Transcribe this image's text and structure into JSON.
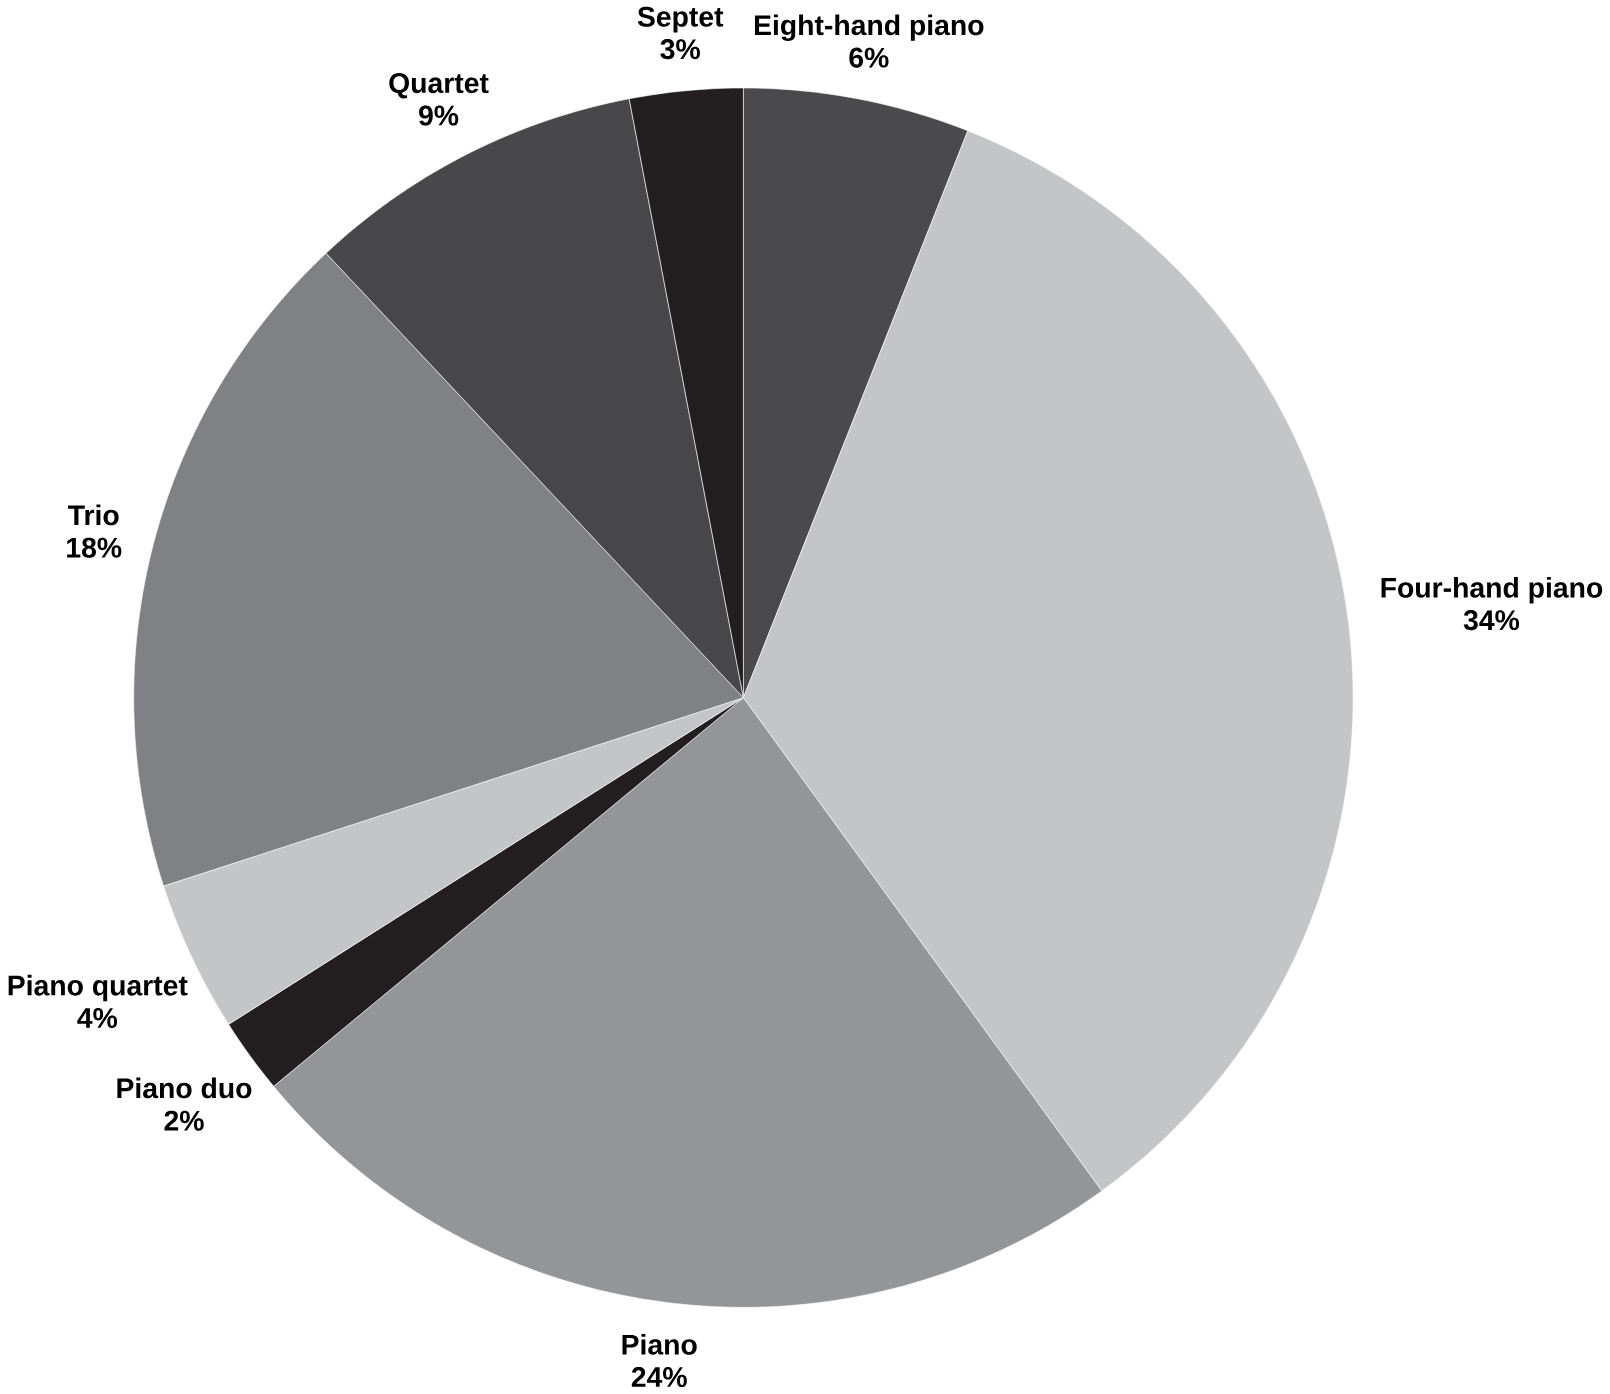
{
  "chart_data": {
    "type": "pie",
    "categories": [
      "Eight-hand piano",
      "Four-hand piano",
      "Piano",
      "Piano duo",
      "Piano quartet",
      "Trio",
      "Quartet",
      "Septet"
    ],
    "values": [
      6,
      34,
      24,
      2,
      4,
      18,
      9,
      3
    ],
    "value_labels": [
      "6%",
      "34%",
      "24%",
      "2%",
      "4%",
      "18%",
      "9%",
      "3%"
    ],
    "colors": [
      "#4a4a4c",
      "#c4c5c7",
      "#939598",
      "#231f20",
      "#c4c5c7",
      "#808184",
      "#48484a",
      "#231f20"
    ]
  }
}
